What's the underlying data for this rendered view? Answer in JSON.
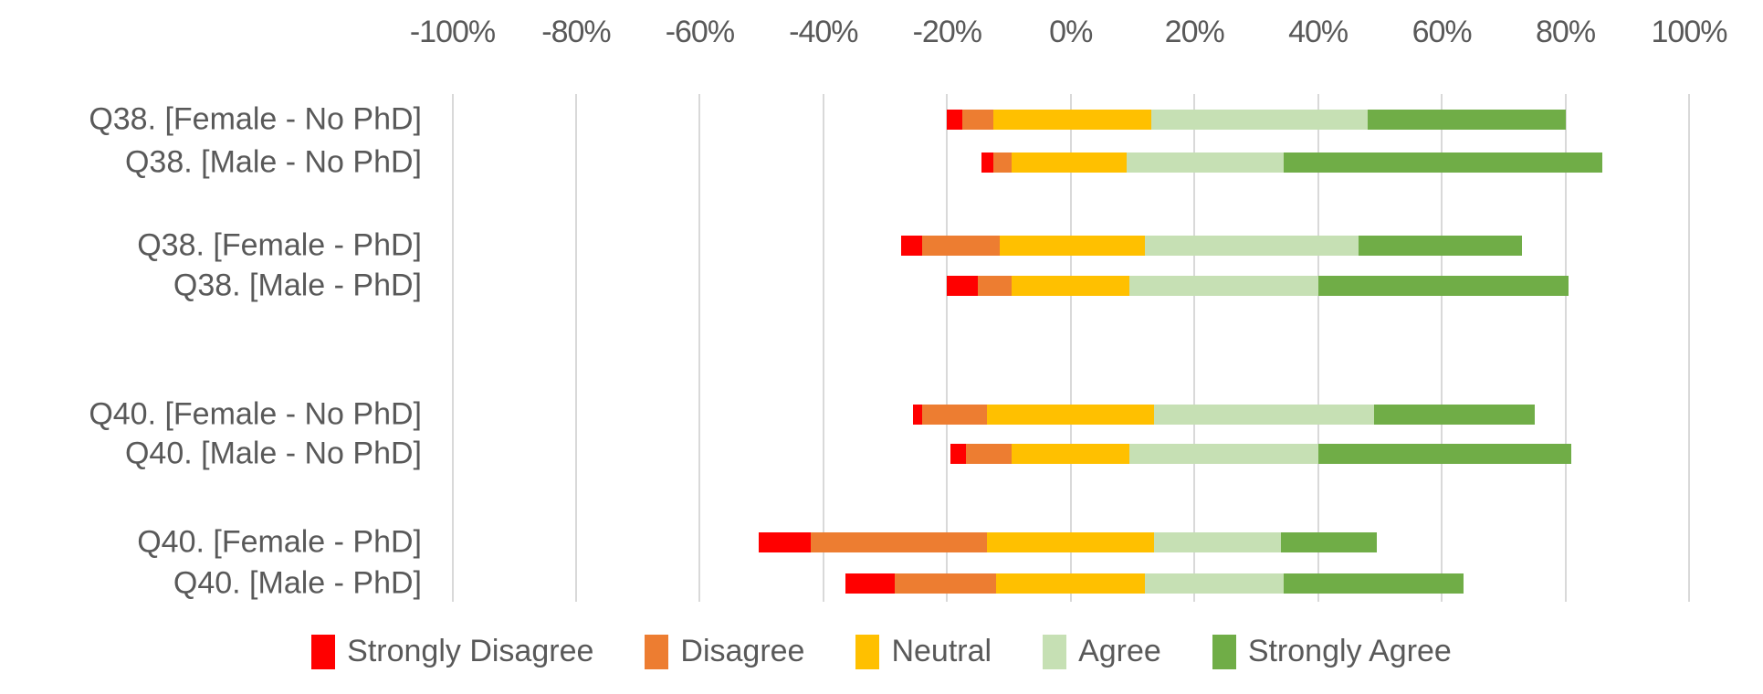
{
  "axis": {
    "tick_labels": [
      "-100%",
      "-80%",
      "-60%",
      "-40%",
      "-20%",
      "0%",
      "20%",
      "40%",
      "60%",
      "80%",
      "100%"
    ],
    "tick_values": [
      -100,
      -80,
      -60,
      -40,
      -20,
      0,
      20,
      40,
      60,
      80,
      100
    ],
    "min": -100,
    "max": 100,
    "grid": true
  },
  "colors": {
    "strongly_disagree": "#ff0000",
    "disagree": "#ed7d31",
    "neutral": "#ffc000",
    "agree": "#c6e0b4",
    "strongly_agree": "#70ad47",
    "gridline": "#d9d9d9",
    "text": "#595959",
    "background": "#ffffff"
  },
  "legend": {
    "position": "bottom",
    "items": [
      {
        "label": "Strongly Disagree",
        "color": "#ff0000"
      },
      {
        "label": "Disagree",
        "color": "#ed7d31"
      },
      {
        "label": "Neutral",
        "color": "#ffc000"
      },
      {
        "label": "Agree",
        "color": "#c6e0b4"
      },
      {
        "label": "Strongly Agree",
        "color": "#70ad47"
      }
    ]
  },
  "chart_data": {
    "type": "bar",
    "variant": "diverging-stacked-likert",
    "orientation": "horizontal",
    "title": "",
    "xlabel": "",
    "ylabel": "",
    "xlim": [
      -100,
      100
    ],
    "grid": true,
    "legend_position": "bottom",
    "categories": [
      "Q38. [Female - No PhD]",
      "Q38. [Male - No PhD]",
      "Q38. [Female - PhD]",
      "Q38. [Male - PhD]",
      "Q40. [Female - No PhD]",
      "Q40. [Male - No PhD]",
      "Q40. [Female - PhD]",
      "Q40. [Male - PhD]"
    ],
    "series": [
      {
        "name": "Strongly Disagree",
        "color": "#ff0000",
        "values": [
          2.5,
          2,
          3.5,
          5,
          1.5,
          2.5,
          8.5,
          8
        ]
      },
      {
        "name": "Disagree",
        "color": "#ed7d31",
        "values": [
          5,
          3,
          12.5,
          5.5,
          10.5,
          7.5,
          28.5,
          16.5
        ]
      },
      {
        "name": "Neutral",
        "color": "#ffc000",
        "values": [
          25.5,
          18.5,
          23.5,
          19,
          27,
          19,
          27,
          24
        ]
      },
      {
        "name": "Agree",
        "color": "#c6e0b4",
        "values": [
          35,
          25.5,
          34.5,
          30.5,
          35.5,
          30.5,
          20.5,
          22.5
        ]
      },
      {
        "name": "Strongly Agree",
        "color": "#70ad47",
        "values": [
          32,
          51.5,
          26.5,
          40.5,
          26,
          41,
          15.5,
          29
        ]
      }
    ],
    "segment_boundaries_pct": [
      [
        -20,
        -17.5,
        -12.5,
        13,
        48,
        80
      ],
      [
        -14.5,
        -12.5,
        -9.5,
        9,
        34.5,
        86
      ],
      [
        -27.5,
        -24,
        -11.5,
        12,
        46.5,
        73
      ],
      [
        -20,
        -15,
        -9.5,
        9.5,
        40,
        80.5
      ],
      [
        -25.5,
        -24,
        -13.5,
        13.5,
        49,
        75
      ],
      [
        -19.5,
        -17,
        -9.5,
        9.5,
        40,
        81
      ],
      [
        -50.5,
        -42,
        -13.5,
        13.5,
        34,
        49.5
      ],
      [
        -36.5,
        -28.5,
        -12,
        12,
        34.5,
        63.5
      ]
    ]
  }
}
